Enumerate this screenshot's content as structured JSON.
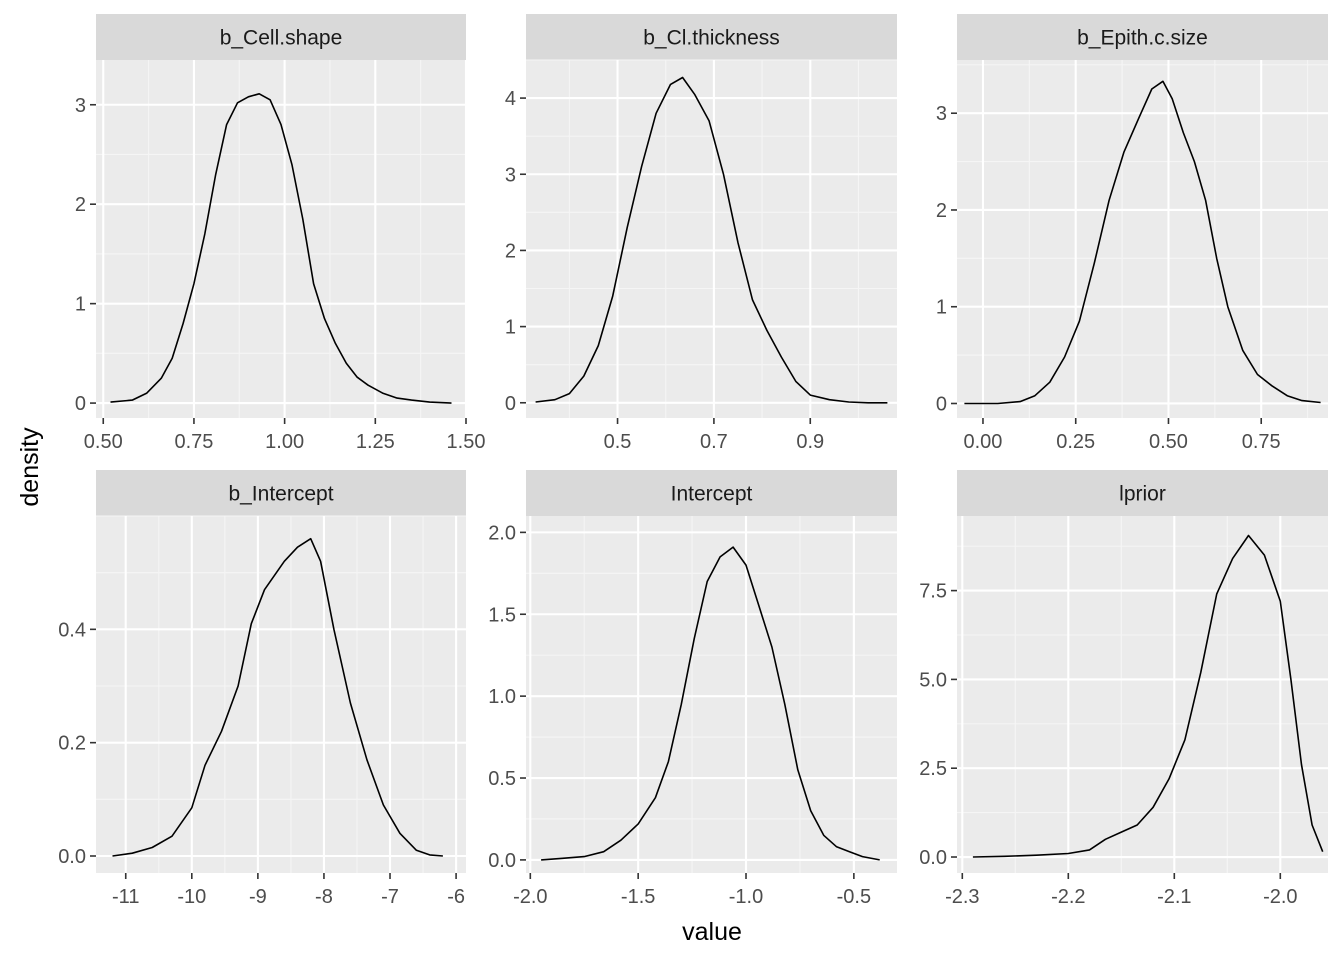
{
  "xlabel": "value",
  "ylabel": "density",
  "colors": {
    "panel_bg": "#EBEBEB",
    "strip_bg": "#D9D9D9",
    "grid_major": "#FFFFFF",
    "grid_minor": "#F5F5F5",
    "line": "#000000",
    "tick_text": "#4D4D4D",
    "strip_text": "#1A1A1A",
    "axis_title": "#000000"
  },
  "chart_data": [
    {
      "type": "line",
      "title": "b_Cell.shape",
      "xlim": [
        0.48,
        1.5
      ],
      "ylim": [
        -0.15,
        3.45
      ],
      "xticks": [
        0.5,
        0.75,
        1.0,
        1.25,
        1.5
      ],
      "xtick_labels": [
        "0.50",
        "0.75",
        "1.00",
        "1.25",
        "1.50"
      ],
      "yticks": [
        0,
        1,
        2,
        3
      ],
      "ytick_labels": [
        "0",
        "1",
        "2",
        "3"
      ],
      "x": [
        0.52,
        0.58,
        0.62,
        0.66,
        0.69,
        0.72,
        0.75,
        0.78,
        0.81,
        0.84,
        0.87,
        0.9,
        0.93,
        0.96,
        0.99,
        1.02,
        1.05,
        1.08,
        1.11,
        1.14,
        1.17,
        1.2,
        1.23,
        1.27,
        1.31,
        1.35,
        1.4,
        1.46
      ],
      "y": [
        0.01,
        0.03,
        0.1,
        0.25,
        0.45,
        0.8,
        1.2,
        1.7,
        2.3,
        2.8,
        3.02,
        3.08,
        3.11,
        3.05,
        2.8,
        2.4,
        1.85,
        1.2,
        0.85,
        0.6,
        0.4,
        0.26,
        0.18,
        0.1,
        0.05,
        0.03,
        0.01,
        0.0
      ]
    },
    {
      "type": "line",
      "title": "b_Cl.thickness",
      "xlim": [
        0.31,
        1.08
      ],
      "ylim": [
        -0.2,
        4.5
      ],
      "xticks": [
        0.5,
        0.7,
        0.9
      ],
      "xtick_labels": [
        "0.5",
        "0.7",
        "0.9"
      ],
      "yticks": [
        0,
        1,
        2,
        3,
        4
      ],
      "ytick_labels": [
        "0",
        "1",
        "2",
        "3",
        "4"
      ],
      "x": [
        0.33,
        0.37,
        0.4,
        0.43,
        0.46,
        0.49,
        0.52,
        0.55,
        0.58,
        0.61,
        0.635,
        0.66,
        0.69,
        0.72,
        0.75,
        0.78,
        0.81,
        0.84,
        0.87,
        0.9,
        0.94,
        0.98,
        1.02,
        1.06
      ],
      "y": [
        0.01,
        0.04,
        0.12,
        0.35,
        0.75,
        1.4,
        2.3,
        3.1,
        3.8,
        4.18,
        4.27,
        4.05,
        3.7,
        3.0,
        2.1,
        1.35,
        0.95,
        0.6,
        0.28,
        0.1,
        0.04,
        0.01,
        0.0,
        0.0
      ]
    },
    {
      "type": "line",
      "title": "b_Epith.c.size",
      "xlim": [
        -0.07,
        0.93
      ],
      "ylim": [
        -0.15,
        3.55
      ],
      "xticks": [
        0.0,
        0.25,
        0.5,
        0.75
      ],
      "xtick_labels": [
        "0.00",
        "0.25",
        "0.50",
        "0.75"
      ],
      "yticks": [
        0,
        1,
        2,
        3
      ],
      "ytick_labels": [
        "0",
        "1",
        "2",
        "3"
      ],
      "x": [
        -0.05,
        0.04,
        0.1,
        0.14,
        0.18,
        0.22,
        0.26,
        0.3,
        0.34,
        0.38,
        0.42,
        0.455,
        0.485,
        0.51,
        0.54,
        0.57,
        0.6,
        0.63,
        0.66,
        0.7,
        0.74,
        0.78,
        0.82,
        0.86,
        0.91
      ],
      "y": [
        0.0,
        0.0,
        0.02,
        0.08,
        0.22,
        0.48,
        0.85,
        1.45,
        2.1,
        2.6,
        2.95,
        3.25,
        3.33,
        3.15,
        2.8,
        2.5,
        2.1,
        1.5,
        1.0,
        0.55,
        0.3,
        0.18,
        0.08,
        0.03,
        0.01
      ]
    },
    {
      "type": "line",
      "title": "b_Intercept",
      "xlim": [
        -11.45,
        -5.85
      ],
      "ylim": [
        -0.03,
        0.6
      ],
      "xticks": [
        -11,
        -10,
        -9,
        -8,
        -7,
        -6
      ],
      "xtick_labels": [
        "-11",
        "-10",
        "-9",
        "-8",
        "-7",
        "-6"
      ],
      "yticks": [
        0.0,
        0.2,
        0.4
      ],
      "ytick_labels": [
        "0.0",
        "0.2",
        "0.4"
      ],
      "x": [
        -11.2,
        -10.9,
        -10.6,
        -10.3,
        -10.0,
        -9.8,
        -9.55,
        -9.3,
        -9.1,
        -8.9,
        -8.6,
        -8.4,
        -8.2,
        -8.05,
        -7.85,
        -7.6,
        -7.35,
        -7.1,
        -6.85,
        -6.6,
        -6.4,
        -6.2
      ],
      "y": [
        0.0,
        0.005,
        0.015,
        0.035,
        0.085,
        0.16,
        0.22,
        0.3,
        0.41,
        0.47,
        0.52,
        0.545,
        0.56,
        0.52,
        0.4,
        0.27,
        0.17,
        0.09,
        0.04,
        0.01,
        0.002,
        0.0
      ]
    },
    {
      "type": "line",
      "title": "Intercept",
      "xlim": [
        -2.02,
        -0.3
      ],
      "ylim": [
        -0.08,
        2.1
      ],
      "xticks": [
        -2.0,
        -1.5,
        -1.0,
        -0.5
      ],
      "xtick_labels": [
        "-2.0",
        "-1.5",
        "-1.0",
        "-0.5"
      ],
      "yticks": [
        0.0,
        0.5,
        1.0,
        1.5,
        2.0
      ],
      "ytick_labels": [
        "0.0",
        "0.5",
        "1.0",
        "1.5",
        "2.0"
      ],
      "x": [
        -1.95,
        -1.85,
        -1.75,
        -1.66,
        -1.58,
        -1.5,
        -1.42,
        -1.36,
        -1.3,
        -1.24,
        -1.18,
        -1.12,
        -1.06,
        -1.0,
        -0.94,
        -0.88,
        -0.82,
        -0.76,
        -0.7,
        -0.64,
        -0.58,
        -0.52,
        -0.46,
        -0.38
      ],
      "y": [
        0.0,
        0.01,
        0.02,
        0.05,
        0.12,
        0.22,
        0.38,
        0.6,
        0.95,
        1.35,
        1.7,
        1.85,
        1.91,
        1.8,
        1.55,
        1.3,
        0.95,
        0.55,
        0.3,
        0.15,
        0.08,
        0.05,
        0.02,
        0.0
      ]
    },
    {
      "type": "line",
      "title": "lprior",
      "xlim": [
        -2.305,
        -1.955
      ],
      "ylim": [
        -0.45,
        9.6
      ],
      "xticks": [
        -2.3,
        -2.2,
        -2.1,
        -2.0
      ],
      "xtick_labels": [
        "-2.3",
        "-2.2",
        "-2.1",
        "-2.0"
      ],
      "yticks": [
        0.0,
        2.5,
        5.0,
        7.5
      ],
      "ytick_labels": [
        "0.0",
        "2.5",
        "5.0",
        "7.5"
      ],
      "x": [
        -2.29,
        -2.26,
        -2.23,
        -2.2,
        -2.18,
        -2.165,
        -2.15,
        -2.135,
        -2.12,
        -2.105,
        -2.09,
        -2.075,
        -2.06,
        -2.045,
        -2.03,
        -2.015,
        -2.0,
        -1.99,
        -1.98,
        -1.97,
        -1.96
      ],
      "y": [
        0.0,
        0.02,
        0.05,
        0.1,
        0.2,
        0.5,
        0.7,
        0.9,
        1.4,
        2.2,
        3.3,
        5.2,
        7.4,
        8.4,
        9.05,
        8.5,
        7.2,
        5.0,
        2.6,
        0.9,
        0.15
      ]
    }
  ]
}
